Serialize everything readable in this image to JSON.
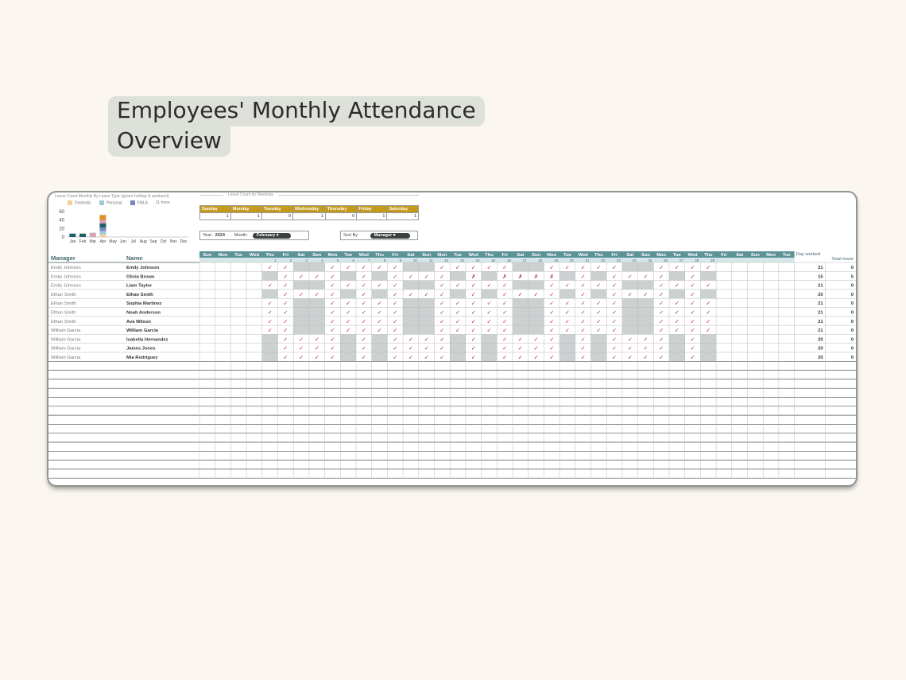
{
  "page": {
    "title_line1": "Employees' Monthly Attendance",
    "title_line2": "Overview"
  },
  "colors": {
    "teal_header": "#5d9298",
    "gold_header": "#c49a1c",
    "weekend_fill": "#ccd0d0",
    "check": "#b0262c"
  },
  "leave_chart": {
    "caption": "Leave Count Monthly By Leave Type (ignore holiday & weekend)",
    "legend": [
      {
        "label": "Domestic",
        "color": "#f0d29a"
      },
      {
        "label": "Personal",
        "color": "#9ecbd6"
      },
      {
        "label": "FMLA",
        "color": "#7a86c4"
      },
      {
        "label": "11 more",
        "color": ""
      }
    ],
    "chart_data": {
      "type": "bar",
      "categories": [
        "Jan",
        "Feb",
        "Mar",
        "Apr",
        "May",
        "Jun",
        "Jul",
        "Aug",
        "Sep",
        "Oct",
        "Nov",
        "Dec"
      ],
      "yticks": [
        "60",
        "40",
        "20",
        "0"
      ],
      "ylim": [
        0,
        60
      ],
      "series": [
        {
          "name": "Domestic",
          "values": [
            0,
            0,
            0,
            6,
            0,
            0,
            0,
            0,
            0,
            0,
            0,
            0
          ],
          "color": "#f0d29a"
        },
        {
          "name": "Personal",
          "values": [
            0,
            0,
            0,
            8,
            0,
            0,
            0,
            0,
            0,
            0,
            0,
            0
          ],
          "color": "#9ecbd6"
        },
        {
          "name": "FMLA",
          "values": [
            0,
            0,
            0,
            8,
            0,
            0,
            0,
            0,
            0,
            0,
            0,
            0
          ],
          "color": "#7a86c4"
        },
        {
          "name": "",
          "values": [
            8,
            8,
            0,
            10,
            0,
            0,
            0,
            0,
            0,
            0,
            0,
            0
          ],
          "color": "#1f5f6b"
        },
        {
          "name": "",
          "values": [
            0,
            0,
            10,
            8,
            0,
            0,
            0,
            0,
            0,
            0,
            0,
            0
          ],
          "color": "#d4a2b2"
        },
        {
          "name": "",
          "values": [
            0,
            0,
            0,
            12,
            0,
            0,
            0,
            0,
            0,
            0,
            0,
            0
          ],
          "color": "#e08e2a"
        }
      ]
    }
  },
  "weekday_summary": {
    "title": "Leave Count by Weekday",
    "days": [
      "Sunday",
      "Monday",
      "Tuesday",
      "Wednesday",
      "Thursday",
      "Friday",
      "Saturday"
    ],
    "values": [
      "1",
      "1",
      "0",
      "1",
      "0",
      "1",
      "1"
    ]
  },
  "controls": {
    "year_label": "Year:",
    "year_value": "2024",
    "month_label": "Month:",
    "month_value": "February",
    "sort_label": "Sort By:",
    "sort_value": "Manager"
  },
  "grid": {
    "manager_header": "Manager",
    "name_header": "Name",
    "day_worked_header": "Day worked",
    "total_leave_header": "Total leave",
    "day_headers": [
      "Sun",
      "Mon",
      "Tue",
      "Wed",
      "Thu",
      "Fri",
      "Sat",
      "Sun",
      "Mon",
      "Tue",
      "Wed",
      "Thu",
      "Fri",
      "Sat",
      "Sun",
      "Mon",
      "Tue",
      "Wed",
      "Thu",
      "Fri",
      "Sat",
      "Sun",
      "Mon",
      "Tue",
      "Wed",
      "Thu",
      "Fri",
      "Sat",
      "Sun",
      "Mon",
      "Tue",
      "Wed",
      "Thu",
      "Fri",
      "Sat",
      "Sun",
      "Mon",
      "Tue"
    ],
    "dates": [
      "",
      "",
      "",
      "",
      "1",
      "2",
      "3",
      "4",
      "5",
      "6",
      "7",
      "8",
      "9",
      "10",
      "11",
      "12",
      "13",
      "14",
      "15",
      "16",
      "17",
      "18",
      "19",
      "20",
      "21",
      "22",
      "23",
      "24",
      "25",
      "26",
      "27",
      "28",
      "29",
      "",
      "",
      "",
      "",
      ""
    ],
    "rows": [
      {
        "manager": "Emily Johnson",
        "name": "Emily Johnson",
        "marks": "✓✓..✓✓✓✓✓..✓✓✓✓✓..✓✓✓✓✓..✓✓✓✓",
        "worked": "21",
        "leave": "0"
      },
      {
        "manager": "Emily Johnson",
        "name": "Olivia Brown",
        "marks": ".✓✓✓✓.✓.✓✓✓✓.✗.✗✗✗✗.✓.✓✓✓✓.✓.",
        "worked": "15",
        "leave": "5"
      },
      {
        "manager": "Emily Johnson",
        "name": "Liam Taylor",
        "marks": "✓✓..✓✓✓✓✓..✓✓✓✓✓..✓✓✓✓✓..✓✓✓✓",
        "worked": "21",
        "leave": "0"
      },
      {
        "manager": "Ethan Smith",
        "name": "Ethan Smith",
        "marks": ".✓✓✓✓.✓.✓✓✓✓.✓.✓✓✓✓.✓.✓✓✓✓.✓.",
        "worked": "20",
        "leave": "0"
      },
      {
        "manager": "Ethan Smith",
        "name": "Sophia Martinez",
        "marks": "✓✓..✓✓✓✓✓..✓✓✓✓✓..✓✓✓✓✓..✓✓✓✓",
        "worked": "21",
        "leave": "0"
      },
      {
        "manager": "Ethan Smith",
        "name": "Noah Anderson",
        "marks": "✓✓..✓✓✓✓✓..✓✓✓✓✓..✓✓✓✓✓..✓✓✓✓",
        "worked": "21",
        "leave": "0"
      },
      {
        "manager": "Ethan Smith",
        "name": "Ava Wilson",
        "marks": "✓✓..✓✓✓✓✓..✓✓✓✓✓..✓✓✓✓✓..✓✓✓✓",
        "worked": "21",
        "leave": "0"
      },
      {
        "manager": "William Garcia",
        "name": "William Garcia",
        "marks": "✓✓..✓✓✓✓✓..✓✓✓✓✓..✓✓✓✓✓..✓✓✓✓",
        "worked": "21",
        "leave": "0"
      },
      {
        "manager": "William Garcia",
        "name": "Isabella Hernandez",
        "marks": ".✓✓✓✓.✓.✓✓✓✓.✓.✓✓✓✓.✓.✓✓✓✓.✓.",
        "worked": "20",
        "leave": "0"
      },
      {
        "manager": "William Garcia",
        "name": "James Jones",
        "marks": ".✓✓✓✓.✓.✓✓✓✓.✓.✓✓✓✓.✓.✓✓✓✓.✓.",
        "worked": "20",
        "leave": "0"
      },
      {
        "manager": "William Garcia",
        "name": "Mia Rodriguez",
        "marks": ".✓✓✓✓.✓.✓✓✓✓.✓.✓✓✓✓.✓.✓✓✓✓.✓.",
        "worked": "20",
        "leave": "0"
      }
    ],
    "empty_rows": 13
  }
}
